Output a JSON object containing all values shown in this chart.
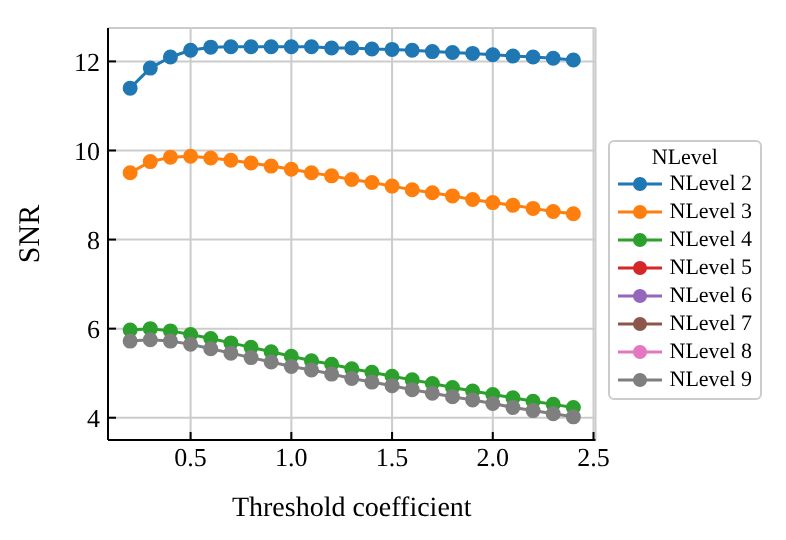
{
  "chart_data": {
    "type": "line",
    "xlabel": "Threshold coefficient",
    "ylabel": "SNR",
    "legend_title": "NLevel",
    "x": [
      0.2,
      0.3,
      0.4,
      0.5,
      0.6,
      0.7,
      0.8,
      0.9,
      1.0,
      1.1,
      1.2,
      1.3,
      1.4,
      1.5,
      1.6,
      1.7,
      1.8,
      1.9,
      2.0,
      2.1,
      2.2,
      2.3,
      2.4
    ],
    "series": [
      {
        "name": "NLevel 2",
        "color": "#1f77b4",
        "values": [
          11.4,
          11.85,
          12.1,
          12.25,
          12.32,
          12.33,
          12.33,
          12.33,
          12.33,
          12.33,
          12.3,
          12.3,
          12.28,
          12.27,
          12.25,
          12.22,
          12.2,
          12.18,
          12.15,
          12.12,
          12.1,
          12.07,
          12.03
        ]
      },
      {
        "name": "NLevel 3",
        "color": "#ff7f0e",
        "values": [
          9.5,
          9.75,
          9.85,
          9.87,
          9.83,
          9.78,
          9.72,
          9.65,
          9.58,
          9.5,
          9.43,
          9.35,
          9.28,
          9.2,
          9.12,
          9.05,
          8.98,
          8.9,
          8.83,
          8.77,
          8.7,
          8.63,
          8.58
        ]
      },
      {
        "name": "NLevel 4",
        "color": "#2ca02c",
        "values": [
          5.97,
          6.0,
          5.95,
          5.87,
          5.78,
          5.68,
          5.58,
          5.48,
          5.38,
          5.28,
          5.2,
          5.1,
          5.02,
          4.93,
          4.85,
          4.77,
          4.68,
          4.6,
          4.52,
          4.45,
          4.37,
          4.3,
          4.23
        ]
      },
      {
        "name": "NLevel 5",
        "color": "#d62728",
        "values": [
          null,
          null,
          null,
          null,
          null,
          null,
          null,
          null,
          null,
          null,
          null,
          null,
          null,
          null,
          null,
          null,
          null,
          null,
          null,
          null,
          null,
          null,
          null
        ]
      },
      {
        "name": "NLevel 6",
        "color": "#9467bd",
        "values": [
          null,
          null,
          null,
          null,
          null,
          null,
          null,
          null,
          null,
          null,
          null,
          null,
          null,
          null,
          null,
          null,
          null,
          null,
          null,
          null,
          null,
          null,
          null
        ]
      },
      {
        "name": "NLevel 7",
        "color": "#8c564b",
        "values": [
          null,
          null,
          null,
          null,
          null,
          null,
          null,
          null,
          null,
          null,
          null,
          null,
          null,
          null,
          null,
          null,
          null,
          null,
          null,
          null,
          null,
          null,
          null
        ]
      },
      {
        "name": "NLevel 8",
        "color": "#e377c2",
        "values": [
          null,
          null,
          null,
          null,
          null,
          null,
          null,
          null,
          null,
          null,
          null,
          null,
          null,
          null,
          null,
          null,
          null,
          null,
          null,
          null,
          null,
          null,
          null
        ]
      },
      {
        "name": "NLevel 9",
        "color": "#7f7f7f",
        "values": [
          5.72,
          5.75,
          5.72,
          5.65,
          5.55,
          5.45,
          5.35,
          5.25,
          5.15,
          5.07,
          4.98,
          4.88,
          4.8,
          4.72,
          4.63,
          4.55,
          4.47,
          4.4,
          4.32,
          4.23,
          4.16,
          4.09,
          4.02
        ]
      }
    ],
    "xlim": [
      0.09,
      2.51
    ],
    "ylim": [
      3.5,
      12.75
    ],
    "xticks": [
      {
        "value": 0.5,
        "label": "0.5"
      },
      {
        "value": 1.0,
        "label": "1.0"
      },
      {
        "value": 1.5,
        "label": "1.5"
      },
      {
        "value": 2.0,
        "label": "2.0"
      },
      {
        "value": 2.5,
        "label": "2.5"
      }
    ],
    "yticks": [
      4,
      6,
      8,
      10,
      12
    ],
    "grid": true,
    "legend": "right",
    "marker": "circle",
    "line_style": "solid"
  }
}
